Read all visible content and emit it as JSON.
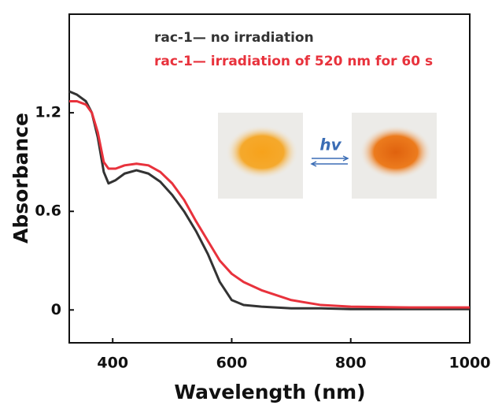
{
  "chart_data": {
    "type": "line",
    "xlabel": "Wavelength (nm)",
    "ylabel": "Absorbance",
    "x": [
      327,
      340,
      355,
      365,
      375,
      385,
      393,
      405,
      420,
      440,
      460,
      480,
      500,
      520,
      540,
      560,
      580,
      600,
      620,
      650,
      700,
      750,
      800,
      900,
      1000
    ],
    "series": [
      {
        "name": "rac-1— no irradiation",
        "color": "#333333",
        "values": [
          1.33,
          1.31,
          1.27,
          1.2,
          1.05,
          0.84,
          0.77,
          0.79,
          0.83,
          0.85,
          0.83,
          0.78,
          0.7,
          0.6,
          0.48,
          0.34,
          0.17,
          0.06,
          0.03,
          0.02,
          0.01,
          0.01,
          0.005,
          0.005,
          0.005
        ]
      },
      {
        "name": "rac-1— irradiation of 520 nm for 60 s",
        "color": "#e8323c",
        "values": [
          1.27,
          1.27,
          1.25,
          1.2,
          1.08,
          0.9,
          0.86,
          0.86,
          0.88,
          0.89,
          0.88,
          0.84,
          0.77,
          0.67,
          0.54,
          0.42,
          0.3,
          0.22,
          0.17,
          0.12,
          0.06,
          0.03,
          0.02,
          0.015,
          0.015
        ]
      }
    ],
    "xlim": [
      327,
      1000
    ],
    "ylim": [
      -0.2,
      1.8
    ],
    "xticks": [
      400,
      600,
      800,
      1000
    ],
    "yticks": [
      0,
      0.6,
      1.2
    ],
    "annotations": [
      "hv"
    ]
  }
}
